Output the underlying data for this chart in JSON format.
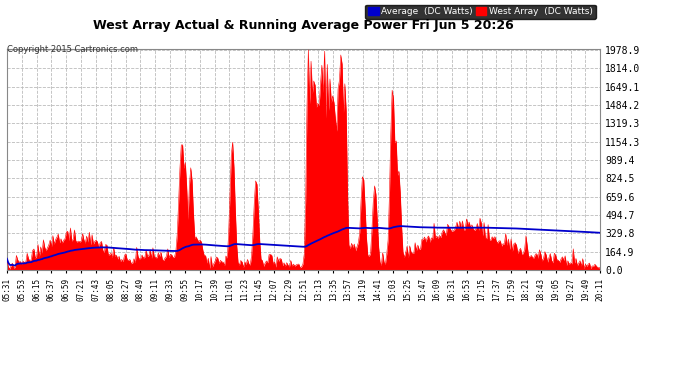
{
  "title": "West Array Actual & Running Average Power Fri Jun 5 20:26",
  "copyright": "Copyright 2015 Cartronics.com",
  "legend_avg": "Average  (DC Watts)",
  "legend_west": "West Array  (DC Watts)",
  "ylabel_values": [
    0.0,
    164.9,
    329.8,
    494.7,
    659.6,
    824.5,
    989.4,
    1154.3,
    1319.3,
    1484.2,
    1649.1,
    1814.0,
    1978.9
  ],
  "ymax": 1978.9,
  "ymin": 0.0,
  "bg_color": "#ffffff",
  "plot_bg_color": "#ffffff",
  "grid_color": "#bbbbbb",
  "red_fill_color": "#ff0000",
  "blue_line_color": "#0000cc",
  "title_color": "#000000",
  "x_tick_labels": [
    "05:31",
    "05:53",
    "06:15",
    "06:37",
    "06:59",
    "07:21",
    "07:43",
    "08:05",
    "08:27",
    "08:49",
    "09:11",
    "09:33",
    "09:55",
    "10:17",
    "10:39",
    "11:01",
    "11:23",
    "11:45",
    "12:07",
    "12:29",
    "12:51",
    "13:13",
    "13:35",
    "13:57",
    "14:19",
    "14:41",
    "15:03",
    "15:25",
    "15:47",
    "16:09",
    "16:31",
    "16:53",
    "17:15",
    "17:37",
    "17:59",
    "18:21",
    "18:43",
    "19:05",
    "19:27",
    "19:49",
    "20:11"
  ]
}
